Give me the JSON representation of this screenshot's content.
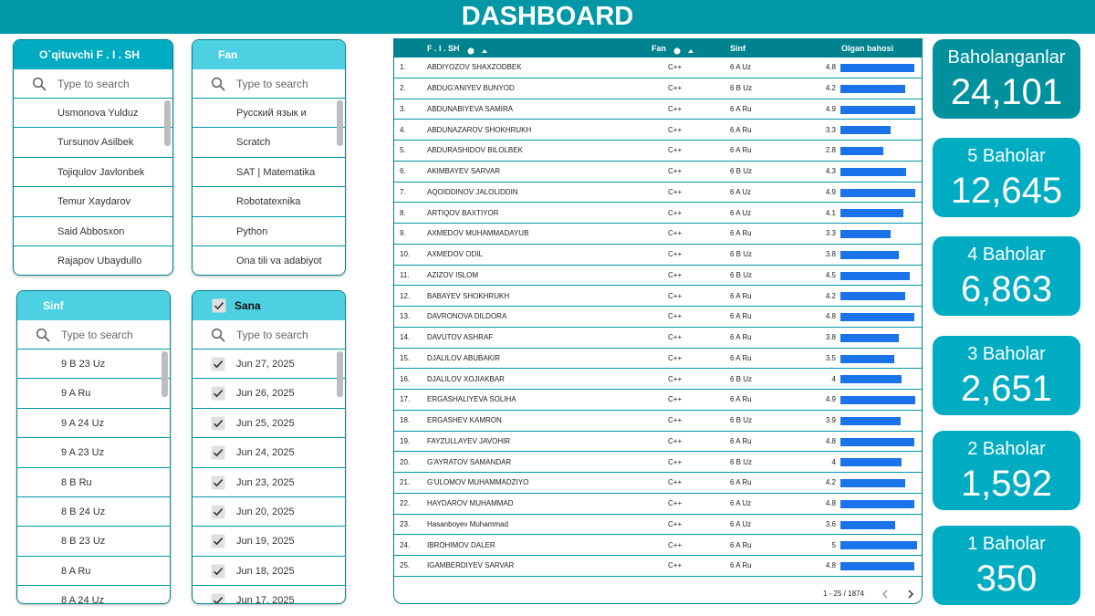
{
  "header": {
    "title": "DASHBOARD"
  },
  "filters": [
    {
      "title": "O`qituvchi F . I . SH",
      "search": "Type to search",
      "items": [
        "Usmonova Yulduz",
        "Tursunov Asilbek",
        "Tojiqulov Javlonbek",
        "Temur Xaydarov",
        "Said Abbosxon",
        "Rajapov Ubaydullo"
      ]
    },
    {
      "title": "Fan",
      "search": "Type to search",
      "items": [
        "Русский язык и",
        "Scratch",
        "SAT | Matematika",
        "Robotatexnika",
        "Python",
        "Ona tili va adabiyot"
      ]
    },
    {
      "title": "Sinf",
      "search": "Type to search",
      "items": [
        "9 B 23 Uz",
        "9 A Ru",
        "9 A 24 Uz",
        "9 A 23 Uz",
        "8 B Ru",
        "8 B 24 Uz",
        "8 B 23 Uz",
        "8 A Ru",
        "8 A 24 Uz"
      ]
    },
    {
      "title": "Sana",
      "search": "Type to search",
      "checked": true,
      "items": [
        "Jun 27, 2025",
        "Jun 26, 2025",
        "Jun 25, 2025",
        "Jun 24, 2025",
        "Jun 23, 2025",
        "Jun 20, 2025",
        "Jun 19, 2025",
        "Jun 18, 2025",
        "Jun 17, 2025"
      ]
    }
  ],
  "table": {
    "columns": [
      "F . I . SH",
      "Fan",
      "Sinf",
      "Olgan bahosi"
    ],
    "bar_color": "#1a73e8",
    "rows": [
      [
        "1.",
        "ABDIYOZOV SHAXZODBEK",
        "C++",
        "6 A Uz",
        4.8
      ],
      [
        "2.",
        "ABDUG'ANIYEV BUNYOD",
        "C++",
        "6 B Uz",
        4.2
      ],
      [
        "3.",
        "ABDUNABIYEVA SAMIRA",
        "C++",
        "6 A Ru",
        4.9
      ],
      [
        "4.",
        "ABDUNAZAROV SHOKHRUKH",
        "C++",
        "6 A Ru",
        3.3
      ],
      [
        "5.",
        "ABDURASHIDOV BILOLBEK",
        "C++",
        "6 A Ru",
        2.8
      ],
      [
        "6.",
        "AKIMBAYEV SARVAR",
        "C++",
        "6 B Uz",
        4.3
      ],
      [
        "7.",
        "AQOIDDINOV JALOLIDDIN",
        "C++",
        "6 A Uz",
        4.9
      ],
      [
        "8.",
        "ARTIQOV BAXTIYOR",
        "C++",
        "6 A Uz",
        4.1
      ],
      [
        "9.",
        "AXMEDOV MUHAMMADAYUB",
        "C++",
        "6 A Ru",
        3.3
      ],
      [
        "10.",
        "AXMEDOV ODIL",
        "C++",
        "6 B Uz",
        3.8
      ],
      [
        "11.",
        "AZIZOV ISLOM",
        "C++",
        "6 B Uz",
        4.5
      ],
      [
        "12.",
        "BABAYEV SHOKHRUKH",
        "C++",
        "6 A Ru",
        4.2
      ],
      [
        "13.",
        "DAVRONOVA DILDORA",
        "C++",
        "6 A Ru",
        4.8
      ],
      [
        "14.",
        "DAVUTOV ASHRAF",
        "C++",
        "6 A Ru",
        3.8
      ],
      [
        "15.",
        "DJALILOV ABUBAKIR",
        "C++",
        "6 A Ru",
        3.5
      ],
      [
        "16.",
        "DJALILOV XOJIAKBAR",
        "C++",
        "6 B Uz",
        4
      ],
      [
        "17.",
        "ERGASHALIYEVA SOLIHA",
        "C++",
        "6 A Ru",
        4.9
      ],
      [
        "18.",
        "ERGASHEV KAMRON",
        "C++",
        "6 B Uz",
        3.9
      ],
      [
        "19.",
        "FAYZULLAYEV JAVOHIR",
        "C++",
        "6 A Ru",
        4.8
      ],
      [
        "20.",
        "G'AYRATOV SAMANDAR",
        "C++",
        "6 B Uz",
        4
      ],
      [
        "21.",
        "G'ULOMOV MUHAMMADZIYO",
        "C++",
        "6 A Ru",
        4.2
      ],
      [
        "22.",
        "HAYDAROV MUHAMMAD",
        "C++",
        "6 A Uz",
        4.8
      ],
      [
        "23.",
        "Hasanboyev Muhammad",
        "C++",
        "6 A Uz",
        3.6
      ],
      [
        "24.",
        "IBROHIMOV DALER",
        "C++",
        "6 A Ru",
        5
      ],
      [
        "25.",
        "IGAMBERDIYEV SARVAR",
        "C++",
        "6 A Ru",
        4.8
      ]
    ],
    "pagination": "1 - 25 / 1874"
  },
  "kpis": [
    {
      "label": "Baholanganlar",
      "value": "24,101"
    },
    {
      "label": "5 Baholar",
      "value": "12,645"
    },
    {
      "label": "4 Baholar",
      "value": "6,863"
    },
    {
      "label": "3 Baholar",
      "value": "2,651"
    },
    {
      "label": "2 Baholar",
      "value": "1,592"
    },
    {
      "label": "1 Baholar",
      "value": "350"
    }
  ]
}
